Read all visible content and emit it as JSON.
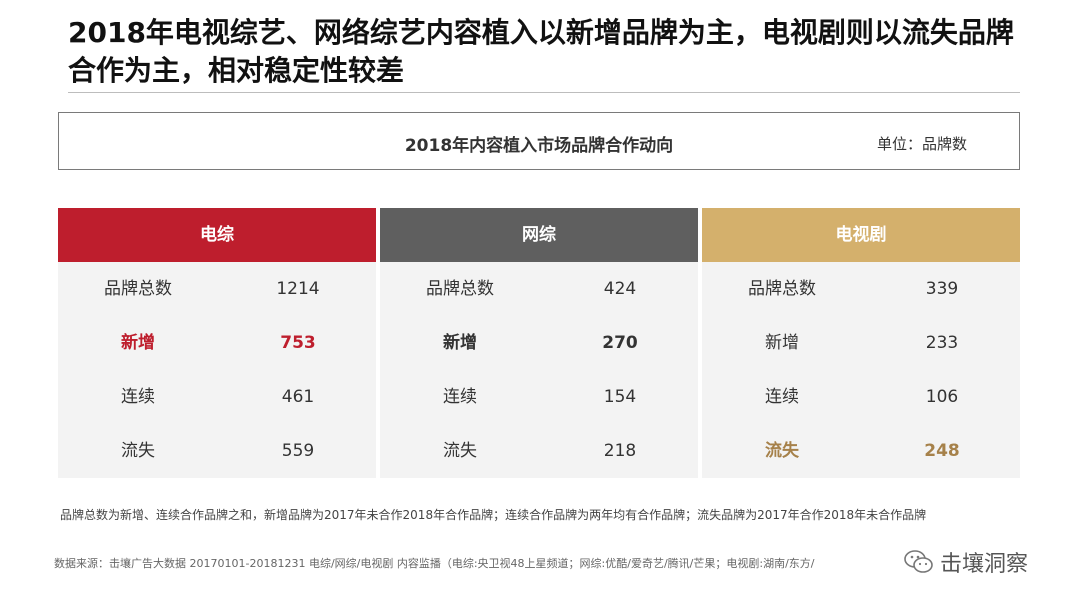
{
  "headline": "2018年电视综艺、网络综艺内容植入以新增品牌为主，电视剧则以流失品牌合作为主，相对稳定性较差",
  "chart_title": "2018年内容植入市场品牌合作动向",
  "unit": "单位：品牌数",
  "colors": {
    "tv_variety": "#be1e2d",
    "net_variety": "#5f5f5f",
    "tv_drama": "#d4b06c",
    "tv_drama_text": "#a6814a"
  },
  "panels": [
    {
      "name": "电综",
      "rows": [
        {
          "label": "品牌总数",
          "value": "1214"
        },
        {
          "label": "新增",
          "value": "753"
        },
        {
          "label": "连续",
          "value": "461"
        },
        {
          "label": "流失",
          "value": "559"
        }
      ]
    },
    {
      "name": "网综",
      "rows": [
        {
          "label": "品牌总数",
          "value": "424"
        },
        {
          "label": "新增",
          "value": "270"
        },
        {
          "label": "连续",
          "value": "154"
        },
        {
          "label": "流失",
          "value": "218"
        }
      ]
    },
    {
      "name": "电视剧",
      "rows": [
        {
          "label": "品牌总数",
          "value": "339"
        },
        {
          "label": "新增",
          "value": "233"
        },
        {
          "label": "连续",
          "value": "106"
        },
        {
          "label": "流失",
          "value": "248"
        }
      ]
    }
  ],
  "note": "品牌总数为新增、连续合作品牌之和，新增品牌为2017年未合作2018年合作品牌；连续合作品牌为两年均有合作品牌；流失品牌为2017年合作2018年未合作品牌",
  "source": "数据来源：击壤广告大数据 20170101-20181231 电综/网综/电视剧 内容监播（电综:央卫视48上星频道；网综:优酷/爱奇艺/腾讯/芒果；电视剧:湖南/东方/",
  "watermark": "击壤洞察"
}
